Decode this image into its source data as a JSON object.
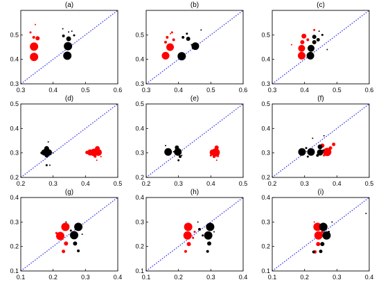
{
  "figure": {
    "colors": {
      "red": "#ff0000",
      "black": "#000000",
      "diagonal": "#3a3af0",
      "frame": "#000000"
    }
  },
  "chart_data": [
    {
      "type": "scatter",
      "title": "(a)",
      "xlim": [
        0.3,
        0.6
      ],
      "ylim": [
        0.3,
        0.6
      ],
      "xticks": [
        "0.3",
        "0.4",
        "0.5",
        "0.6"
      ],
      "yticks": [
        "0.3",
        "0.4",
        "0.5"
      ],
      "diagonal": true,
      "series": [
        {
          "color": "red",
          "points": [
            [
              0.341,
              0.41,
              6
            ],
            [
              0.341,
              0.452,
              6
            ],
            [
              0.352,
              0.486,
              3
            ],
            [
              0.34,
              0.49,
              2
            ],
            [
              0.33,
              0.51,
              1.5
            ],
            [
              0.345,
              0.542,
              1
            ]
          ]
        },
        {
          "color": "black",
          "points": [
            [
              0.444,
              0.415,
              6
            ],
            [
              0.446,
              0.454,
              6
            ],
            [
              0.448,
              0.484,
              3.5
            ],
            [
              0.432,
              0.496,
              2
            ],
            [
              0.465,
              0.498,
              1.5
            ],
            [
              0.448,
              0.512,
              1
            ],
            [
              0.458,
              0.515,
              1
            ],
            [
              0.43,
              0.525,
              1
            ]
          ]
        }
      ]
    },
    {
      "type": "scatter",
      "title": "(b)",
      "xlim": [
        0.3,
        0.6
      ],
      "ylim": [
        0.3,
        0.6
      ],
      "xticks": [
        "0.3",
        "0.4",
        "0.5",
        "0.6"
      ],
      "yticks": [
        "0.3",
        "0.4",
        "0.5"
      ],
      "diagonal": true,
      "series": [
        {
          "color": "red",
          "points": [
            [
              0.36,
              0.415,
              5.5
            ],
            [
              0.374,
              0.45,
              5.5
            ],
            [
              0.36,
              0.47,
              2
            ],
            [
              0.385,
              0.48,
              2
            ],
            [
              0.365,
              0.49,
              2
            ],
            [
              0.38,
              0.51,
              1.5
            ],
            [
              0.375,
              0.505,
              1
            ]
          ]
        },
        {
          "color": "black",
          "points": [
            [
              0.41,
              0.413,
              6
            ],
            [
              0.452,
              0.454,
              5.5
            ],
            [
              0.43,
              0.484,
              3
            ],
            [
              0.414,
              0.49,
              2
            ],
            [
              0.426,
              0.505,
              1.5
            ],
            [
              0.44,
              0.46,
              1
            ],
            [
              0.47,
              0.52,
              1
            ]
          ]
        }
      ]
    },
    {
      "type": "scatter",
      "title": "(c)",
      "xlim": [
        0.3,
        0.6
      ],
      "ylim": [
        0.3,
        0.6
      ],
      "xticks": [
        "0.3",
        "0.4",
        "0.5",
        "0.6"
      ],
      "yticks": [
        "0.3",
        "0.4",
        "0.5"
      ],
      "diagonal": true,
      "series": [
        {
          "color": "red",
          "points": [
            [
              0.391,
              0.415,
              5.5
            ],
            [
              0.391,
              0.445,
              5
            ],
            [
              0.393,
              0.47,
              3
            ],
            [
              0.398,
              0.495,
              3.5
            ],
            [
              0.41,
              0.48,
              2
            ],
            [
              0.43,
              0.52,
              1.5
            ],
            [
              0.36,
              0.46,
              1
            ]
          ]
        },
        {
          "color": "black",
          "points": [
            [
              0.418,
              0.415,
              5.5
            ],
            [
              0.42,
              0.445,
              5
            ],
            [
              0.43,
              0.47,
              3
            ],
            [
              0.43,
              0.492,
              3
            ],
            [
              0.442,
              0.48,
              2.5
            ],
            [
              0.455,
              0.5,
              1.5
            ],
            [
              0.47,
              0.44,
              1
            ],
            [
              0.445,
              0.515,
              1
            ]
          ]
        }
      ]
    },
    {
      "type": "scatter",
      "title": "(d)",
      "xlim": [
        0.2,
        0.5
      ],
      "ylim": [
        0.2,
        0.5
      ],
      "xticks": [
        "0.2",
        "0.3",
        "0.4",
        "0.5"
      ],
      "yticks": [
        "0.2",
        "0.3",
        "0.4",
        "0.5"
      ],
      "diagonal": true,
      "series": [
        {
          "color": "red",
          "points": [
            [
              0.427,
              0.302,
              5.5
            ],
            [
              0.415,
              0.302,
              4.5
            ],
            [
              0.44,
              0.302,
              5
            ],
            [
              0.43,
              0.286,
              2
            ],
            [
              0.437,
              0.318,
              3.5
            ],
            [
              0.405,
              0.302,
              2.5
            ],
            [
              0.435,
              0.27,
              1
            ],
            [
              0.448,
              0.285,
              1
            ]
          ]
        },
        {
          "color": "black",
          "points": [
            [
              0.28,
              0.304,
              5.5
            ],
            [
              0.273,
              0.302,
              4.5
            ],
            [
              0.287,
              0.302,
              4.5
            ],
            [
              0.28,
              0.29,
              3
            ],
            [
              0.28,
              0.318,
              3.5
            ],
            [
              0.265,
              0.3,
              2
            ],
            [
              0.28,
              0.25,
              1.5
            ],
            [
              0.29,
              0.25,
              1
            ],
            [
              0.285,
              0.345,
              1
            ],
            [
              0.3,
              0.3,
              1
            ]
          ]
        }
      ]
    },
    {
      "type": "scatter",
      "title": "(e)",
      "xlim": [
        0.2,
        0.5
      ],
      "ylim": [
        0.2,
        0.5
      ],
      "xticks": [
        "0.2",
        "0.3",
        "0.4",
        "0.5"
      ],
      "yticks": [
        "0.2",
        "0.3",
        "0.4",
        "0.5"
      ],
      "diagonal": true,
      "series": [
        {
          "color": "red",
          "points": [
            [
              0.415,
              0.302,
              6
            ],
            [
              0.406,
              0.302,
              4.5
            ],
            [
              0.418,
              0.322,
              3
            ],
            [
              0.41,
              0.285,
              2
            ],
            [
              0.4,
              0.29,
              1.5
            ],
            [
              0.422,
              0.287,
              1.5
            ],
            [
              0.418,
              0.27,
              1
            ]
          ]
        },
        {
          "color": "black",
          "points": [
            [
              0.268,
              0.304,
              5.5
            ],
            [
              0.298,
              0.304,
              5.5
            ],
            [
              0.295,
              0.322,
              3
            ],
            [
              0.305,
              0.285,
              2
            ],
            [
              0.3,
              0.27,
              1.5
            ],
            [
              0.285,
              0.305,
              1
            ],
            [
              0.31,
              0.29,
              1
            ],
            [
              0.26,
              0.33,
              1
            ]
          ]
        }
      ]
    },
    {
      "type": "scatter",
      "title": "(f)",
      "xlim": [
        0.2,
        0.5
      ],
      "ylim": [
        0.2,
        0.5
      ],
      "xticks": [
        "0.2",
        "0.3",
        "0.4",
        "0.5"
      ],
      "yticks": [
        "0.2",
        "0.3",
        "0.4",
        "0.5"
      ],
      "diagonal": true,
      "series": [
        {
          "color": "red",
          "points": [
            [
              0.37,
              0.304,
              6
            ],
            [
              0.38,
              0.32,
              2.5
            ],
            [
              0.355,
              0.33,
              3
            ],
            [
              0.39,
              0.335,
              2.5
            ],
            [
              0.36,
              0.29,
              1.5
            ]
          ]
        },
        {
          "color": "black",
          "points": [
            [
              0.292,
              0.304,
              5.5
            ],
            [
              0.32,
              0.304,
              5.5
            ],
            [
              0.348,
              0.302,
              4.5
            ],
            [
              0.348,
              0.325,
              3.5
            ],
            [
              0.34,
              0.29,
              2
            ],
            [
              0.31,
              0.285,
              1.5
            ],
            [
              0.305,
              0.32,
              1.5
            ],
            [
              0.358,
              0.31,
              1.5
            ],
            [
              0.36,
              0.37,
              1
            ],
            [
              0.325,
              0.36,
              1
            ]
          ]
        }
      ]
    },
    {
      "type": "scatter",
      "title": "(g)",
      "xlim": [
        0.1,
        0.4
      ],
      "ylim": [
        0.1,
        0.4
      ],
      "xticks": [
        "0.1",
        "0.2",
        "0.3",
        "0.4"
      ],
      "yticks": [
        "0.1",
        "0.2",
        "0.3",
        "0.4"
      ],
      "diagonal": true,
      "series": [
        {
          "color": "red",
          "points": [
            [
              0.238,
              0.28,
              6
            ],
            [
              0.222,
              0.243,
              6
            ],
            [
              0.24,
              0.212,
              3
            ],
            [
              0.232,
              0.18,
              2.5
            ],
            [
              0.21,
              0.255,
              1.5
            ],
            [
              0.23,
              0.23,
              1
            ]
          ]
        },
        {
          "color": "black",
          "points": [
            [
              0.278,
              0.28,
              6
            ],
            [
              0.265,
              0.246,
              6
            ],
            [
              0.268,
              0.212,
              3
            ],
            [
              0.278,
              0.182,
              2
            ],
            [
              0.255,
              0.265,
              1.5
            ],
            [
              0.29,
              0.25,
              1
            ],
            [
              0.24,
              0.3,
              1
            ]
          ]
        }
      ]
    },
    {
      "type": "scatter",
      "title": "(h)",
      "xlim": [
        0.1,
        0.4
      ],
      "ylim": [
        0.1,
        0.4
      ],
      "xticks": [
        "0.1",
        "0.2",
        "0.3",
        "0.4"
      ],
      "yticks": [
        "0.1",
        "0.2",
        "0.3",
        "0.4"
      ],
      "diagonal": true,
      "series": [
        {
          "color": "red",
          "points": [
            [
              0.23,
              0.28,
              6
            ],
            [
              0.228,
              0.245,
              6
            ],
            [
              0.232,
              0.21,
              3
            ],
            [
              0.222,
              0.18,
              2
            ],
            [
              0.245,
              0.235,
              1.5
            ],
            [
              0.25,
              0.26,
              1.5
            ]
          ]
        },
        {
          "color": "black",
          "points": [
            [
              0.298,
              0.28,
              6
            ],
            [
              0.292,
              0.245,
              6
            ],
            [
              0.295,
              0.212,
              3
            ],
            [
              0.29,
              0.18,
              2
            ],
            [
              0.265,
              0.27,
              2
            ],
            [
              0.275,
              0.245,
              1.5
            ],
            [
              0.31,
              0.26,
              1
            ],
            [
              0.26,
              0.3,
              1
            ]
          ]
        }
      ]
    },
    {
      "type": "scatter",
      "title": "(i)",
      "xlim": [
        0.1,
        0.4
      ],
      "ylim": [
        0.1,
        0.4
      ],
      "xticks": [
        "0.1",
        "0.2",
        "0.3",
        "0.4"
      ],
      "yticks": [
        "0.1",
        "0.2",
        "0.3",
        "0.4"
      ],
      "diagonal": true,
      "series": [
        {
          "color": "red",
          "points": [
            [
              0.24,
              0.28,
              6
            ],
            [
              0.243,
              0.245,
              6
            ],
            [
              0.242,
              0.21,
              3
            ],
            [
              0.232,
              0.178,
              2.5
            ],
            [
              0.255,
              0.26,
              2
            ],
            [
              0.23,
              0.3,
              1
            ]
          ]
        },
        {
          "color": "black",
          "points": [
            [
              0.258,
              0.28,
              6
            ],
            [
              0.268,
              0.245,
              6
            ],
            [
              0.255,
              0.21,
              3
            ],
            [
              0.25,
              0.18,
              2.5
            ],
            [
              0.228,
              0.178,
              2
            ],
            [
              0.275,
              0.26,
              1.5
            ],
            [
              0.39,
              0.335,
              1
            ],
            [
              0.285,
              0.3,
              1
            ]
          ]
        }
      ]
    }
  ]
}
